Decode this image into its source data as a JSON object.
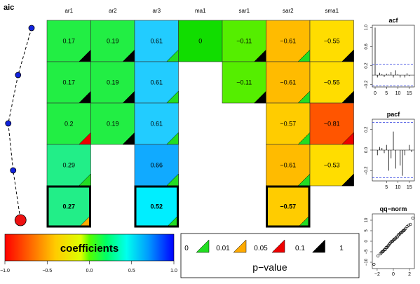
{
  "chart_data": {
    "type": "heatmap",
    "aic_label": "aic",
    "aic_points": 5,
    "aic_shape": [
      0.0,
      0.55,
      0.95,
      0.75,
      0.45
    ],
    "columns": [
      "ar1",
      "ar2",
      "ar3",
      "ma1",
      "sar1",
      "sar2",
      "sma1"
    ],
    "rows": [
      {
        "cells": [
          {
            "v": "0.17",
            "c": "#22ee44",
            "p": "black"
          },
          {
            "v": "0.19",
            "c": "#22ee44",
            "p": "black"
          },
          {
            "v": "0.61",
            "c": "#22ccff",
            "p": "green"
          },
          {
            "v": "0",
            "c": "#11dd00",
            "p": "none"
          },
          {
            "v": "−0.11",
            "c": "#55ee00",
            "p": "black"
          },
          {
            "v": "−0.61",
            "c": "#ffbb00",
            "p": "green"
          },
          {
            "v": "−0.55",
            "c": "#ffdd00",
            "p": "black"
          }
        ]
      },
      {
        "cells": [
          {
            "v": "0.17",
            "c": "#22ee44",
            "p": "black"
          },
          {
            "v": "0.19",
            "c": "#22ee44",
            "p": "black"
          },
          {
            "v": "0.61",
            "c": "#22ccff",
            "p": "green"
          },
          null,
          {
            "v": "−0.11",
            "c": "#55ee00",
            "p": "black"
          },
          {
            "v": "−0.61",
            "c": "#ffbb00",
            "p": "green"
          },
          {
            "v": "−0.55",
            "c": "#ffdd00",
            "p": "black"
          }
        ]
      },
      {
        "cells": [
          {
            "v": "0.2",
            "c": "#22ee44",
            "p": "red"
          },
          {
            "v": "0.19",
            "c": "#22ee44",
            "p": "black"
          },
          {
            "v": "0.61",
            "c": "#22ccff",
            "p": "green"
          },
          null,
          null,
          {
            "v": "−0.57",
            "c": "#ffcc00",
            "p": "green"
          },
          {
            "v": "−0.81",
            "c": "#ff5500",
            "p": "red"
          }
        ]
      },
      {
        "cells": [
          {
            "v": "0.29",
            "c": "#22ee88",
            "p": "green"
          },
          null,
          {
            "v": "0.66",
            "c": "#11aaff",
            "p": "green"
          },
          null,
          null,
          {
            "v": "−0.61",
            "c": "#ffbb00",
            "p": "green"
          },
          {
            "v": "−0.53",
            "c": "#ffdd00",
            "p": "black"
          }
        ]
      },
      {
        "cells": [
          {
            "v": "0.27",
            "c": "#22ee88",
            "p": "orange"
          },
          null,
          {
            "v": "0.52",
            "c": "#00eeff",
            "p": "green"
          },
          null,
          null,
          {
            "v": "−0.57",
            "c": "#ffcc00",
            "p": "green"
          },
          null
        ]
      }
    ],
    "bold_row": 4,
    "colorbar": {
      "title": "coefficients",
      "ticks": [
        "−1.0",
        "−0.5",
        "0.0",
        "0.5",
        "1.0"
      ]
    },
    "pvalue_legend": {
      "title": "p−value",
      "labels": [
        "0",
        "0.01",
        "0.05",
        "0.1",
        "1"
      ],
      "colors": [
        "#22dd22",
        "#ffaa00",
        "#ee0000",
        "#000000"
      ]
    },
    "acf": {
      "title": "acf",
      "yticks": [
        "−0.2",
        "0.2",
        "0.6",
        "1.0"
      ],
      "xticks": [
        "0",
        "5",
        "10",
        "15"
      ],
      "ylim": [
        -0.25,
        1.05
      ],
      "bound": 0.23,
      "values": [
        1.0,
        -0.05,
        0.05,
        0.02,
        -0.04,
        0.03,
        0.01,
        0.06,
        -0.05,
        0.1,
        0.02,
        -0.05,
        0.0,
        -0.05,
        0.04,
        -0.02
      ]
    },
    "pacf": {
      "title": "pacf",
      "yticks": [
        "−0.2",
        "0.0",
        "0.2"
      ],
      "xticks": [
        "5",
        "10",
        "15"
      ],
      "ylim": [
        -0.3,
        0.3
      ],
      "bound": 0.27,
      "values": [
        -0.05,
        0.03,
        0.02,
        -0.03,
        0.05,
        -0.2,
        -0.08,
        0.18,
        -0.18,
        0.0,
        -0.15,
        -0.25,
        -0.05,
        0.0,
        0.05,
        -0.02
      ]
    },
    "qqnorm": {
      "title": "qq−norm",
      "yticks": [
        "−10",
        "−5",
        "0",
        "5",
        "10"
      ],
      "xticks": [
        "−2",
        "0",
        "2"
      ],
      "xlim": [
        -2.6,
        2.6
      ],
      "ylim": [
        -13,
        13
      ],
      "points": [
        [
          -2.4,
          -11
        ],
        [
          -1.9,
          -7
        ],
        [
          -1.6,
          -6
        ],
        [
          -1.5,
          -5.5
        ],
        [
          -1.4,
          -5
        ],
        [
          -1.3,
          -5
        ],
        [
          -1.2,
          -4.5
        ],
        [
          -1.1,
          -4
        ],
        [
          -1.0,
          -4
        ],
        [
          -0.9,
          -3
        ],
        [
          -0.8,
          -3
        ],
        [
          -0.7,
          -2.5
        ],
        [
          -0.6,
          -2
        ],
        [
          -0.5,
          -1.5
        ],
        [
          -0.4,
          -1
        ],
        [
          -0.3,
          -0.5
        ],
        [
          -0.2,
          0
        ],
        [
          -0.1,
          0
        ],
        [
          0,
          0.5
        ],
        [
          0.1,
          1
        ],
        [
          0.2,
          1
        ],
        [
          0.3,
          1.5
        ],
        [
          0.4,
          2
        ],
        [
          0.5,
          2
        ],
        [
          0.6,
          3
        ],
        [
          0.7,
          3
        ],
        [
          0.8,
          3.5
        ],
        [
          0.9,
          4
        ],
        [
          1.0,
          4
        ],
        [
          1.1,
          4.5
        ],
        [
          1.2,
          5
        ],
        [
          1.3,
          5
        ],
        [
          1.4,
          5.5
        ],
        [
          1.5,
          6
        ],
        [
          1.7,
          7
        ],
        [
          1.9,
          7.5
        ],
        [
          2.1,
          8
        ],
        [
          2.4,
          11
        ]
      ]
    }
  }
}
